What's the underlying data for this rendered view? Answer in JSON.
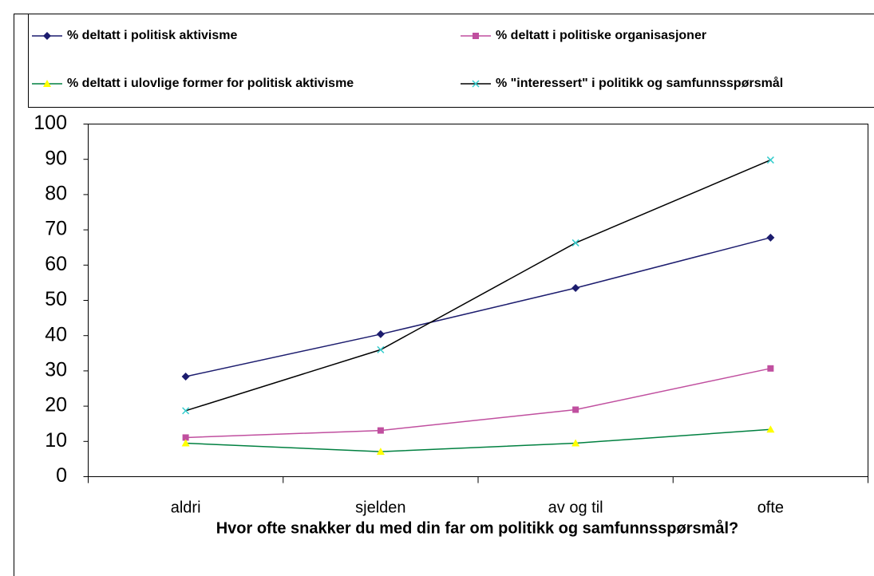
{
  "chart_data": {
    "type": "line",
    "x_label": "Hvor ofte snakker du med din far om politikk og samfunnsspørsmål?",
    "categories": [
      "aldri",
      "sjelden",
      "av og til",
      "ofte"
    ],
    "series": [
      {
        "name": "% deltatt i politisk aktivisme",
        "color": "#1c1c6e",
        "marker_color": "#1c1c6e",
        "marker": "diamond",
        "values": [
          28.4,
          40.4,
          53.5,
          67.8
        ]
      },
      {
        "name": "% deltatt i politiske organisasjoner",
        "color": "#c04f9f",
        "marker_color": "#c04f9f",
        "marker": "square",
        "values": [
          11.1,
          13.1,
          19.0,
          30.7
        ]
      },
      {
        "name": "% deltatt i ulovlige former for politisk aktivisme",
        "color": "#008040",
        "marker_color": "#ffff00",
        "marker": "triangle",
        "values": [
          9.5,
          7.1,
          9.5,
          13.4
        ]
      },
      {
        "name": "% \"interessert\" i politikk og samfunnsspørsmål",
        "color": "#000000",
        "marker_color": "#33cccc",
        "marker": "x",
        "values": [
          18.7,
          36.0,
          66.3,
          89.8
        ]
      }
    ],
    "ylim": [
      0,
      100
    ],
    "yticks": [
      0,
      10,
      20,
      30,
      40,
      50,
      60,
      70,
      80,
      90,
      100
    ],
    "grid": false,
    "legend": "top"
  }
}
